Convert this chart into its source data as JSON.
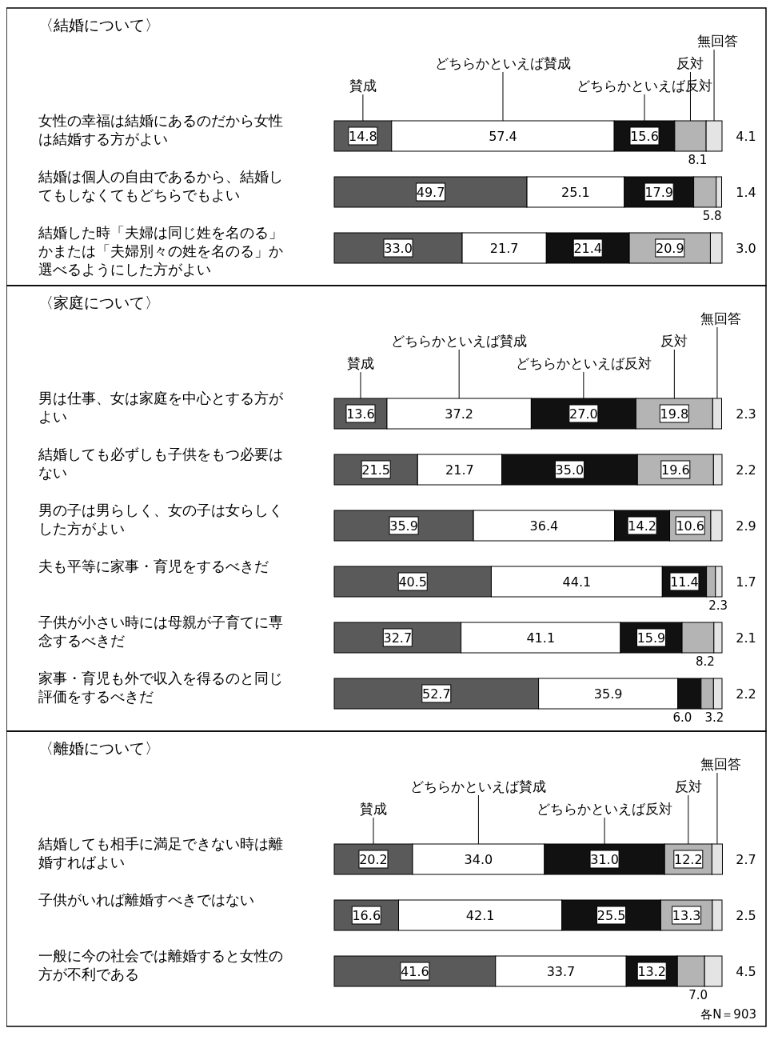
{
  "chart_data": [
    {
      "type": "bar",
      "orientation": "horizontal",
      "stacked": true,
      "title": "〈結婚について〉",
      "legend": "top",
      "xlim": [
        0,
        100
      ],
      "categories": [
        "女性の幸福は結婚にあるのだから女性は結婚する方がよい",
        "結婚は個人の自由であるから、結婚してもしなくてもどちらでもよい",
        "結婚した時「夫婦は同じ姓を名のる」かまたは「夫婦別々の姓を名のる」か選べるようにした方がよい"
      ],
      "series": [
        {
          "name": "賛成",
          "color": "#5a5a5a",
          "values": [
            14.8,
            49.7,
            33.0
          ],
          "value_labels": [
            "14.8",
            "49.7",
            "33.0"
          ]
        },
        {
          "name": "どちらかといえば賛成",
          "color": "#ffffff",
          "values": [
            57.4,
            25.1,
            21.7
          ],
          "value_labels": [
            "57.4",
            "25.1",
            "21.7"
          ]
        },
        {
          "name": "どちらかといえば反対",
          "color": "#111111",
          "values": [
            15.6,
            17.9,
            21.4
          ],
          "value_labels": [
            "15.6",
            "17.9",
            "21.4"
          ]
        },
        {
          "name": "反対",
          "color": "#b4b4b4",
          "values": [
            8.1,
            5.8,
            20.9
          ],
          "value_labels": [
            "8.1",
            "5.8",
            "20.9"
          ]
        },
        {
          "name": "無回答",
          "color": "#e4e4e4",
          "values": [
            4.1,
            1.4,
            3.0
          ],
          "value_labels": [
            "4.1",
            "1.4",
            "3.0"
          ]
        }
      ]
    },
    {
      "type": "bar",
      "orientation": "horizontal",
      "stacked": true,
      "title": "〈家庭について〉",
      "legend": "top",
      "xlim": [
        0,
        100
      ],
      "categories": [
        "男は仕事、女は家庭を中心とする方がよい",
        "結婚しても必ずしも子供をもつ必要はない",
        "男の子は男らしく、女の子は女らしくした方がよい",
        "夫も平等に家事・育児をするべきだ",
        "子供が小さい時には母親が子育てに専念するべきだ",
        "家事・育児も外で収入を得るのと同じ評価をするべきだ"
      ],
      "series": [
        {
          "name": "賛成",
          "color": "#5a5a5a",
          "values": [
            13.6,
            21.5,
            35.9,
            40.5,
            32.7,
            52.7
          ],
          "value_labels": [
            "13.6",
            "21.5",
            "35.9",
            "40.5",
            "32.7",
            "52.7"
          ]
        },
        {
          "name": "どちらかといえば賛成",
          "color": "#ffffff",
          "values": [
            37.2,
            21.7,
            36.4,
            44.1,
            41.1,
            35.9
          ],
          "value_labels": [
            "37.2",
            "21.7",
            "36.4",
            "44.1",
            "41.1",
            "35.9"
          ]
        },
        {
          "name": "どちらかといえば反対",
          "color": "#111111",
          "values": [
            27.0,
            35.0,
            14.2,
            11.4,
            15.9,
            6.0
          ],
          "value_labels": [
            "27.0",
            "35.0",
            "14.2",
            "11.4",
            "15.9",
            "6.0"
          ]
        },
        {
          "name": "反対",
          "color": "#b4b4b4",
          "values": [
            19.8,
            19.6,
            10.6,
            2.3,
            8.2,
            3.2
          ],
          "value_labels": [
            "19.8",
            "19.6",
            "10.6",
            "2.3",
            "8.2",
            "3.2"
          ]
        },
        {
          "name": "無回答",
          "color": "#e4e4e4",
          "values": [
            2.3,
            2.2,
            2.9,
            1.7,
            2.1,
            2.2
          ],
          "value_labels": [
            "2.3",
            "2.2",
            "2.9",
            "1.7",
            "2.1",
            "2.2"
          ]
        }
      ]
    },
    {
      "type": "bar",
      "orientation": "horizontal",
      "stacked": true,
      "title": "〈離婚について〉",
      "legend": "top",
      "xlim": [
        0,
        100
      ],
      "categories": [
        "結婚しても相手に満足できない時は離婚すればよい",
        "子供がいれば離婚すべきではない",
        "一般に今の社会では離婚すると女性の方が不利である"
      ],
      "series": [
        {
          "name": "賛成",
          "color": "#5a5a5a",
          "values": [
            20.2,
            16.6,
            41.6
          ],
          "value_labels": [
            "20.2",
            "16.6",
            "41.6"
          ]
        },
        {
          "name": "どちらかといえば賛成",
          "color": "#ffffff",
          "values": [
            34.0,
            42.1,
            33.7
          ],
          "value_labels": [
            "34.0",
            "42.1",
            "33.7"
          ]
        },
        {
          "name": "どちらかといえば反対",
          "color": "#111111",
          "values": [
            31.0,
            25.5,
            13.2
          ],
          "value_labels": [
            "31.0",
            "25.5",
            "13.2"
          ]
        },
        {
          "name": "反対",
          "color": "#b4b4b4",
          "values": [
            12.2,
            13.3,
            7.0
          ],
          "value_labels": [
            "12.2",
            "13.3",
            "7.0"
          ]
        },
        {
          "name": "無回答",
          "color": "#e4e4e4",
          "values": [
            2.7,
            2.5,
            4.5
          ],
          "value_labels": [
            "2.7",
            "2.5",
            "4.5"
          ]
        }
      ],
      "annotations": [
        "各N＝903"
      ]
    }
  ]
}
